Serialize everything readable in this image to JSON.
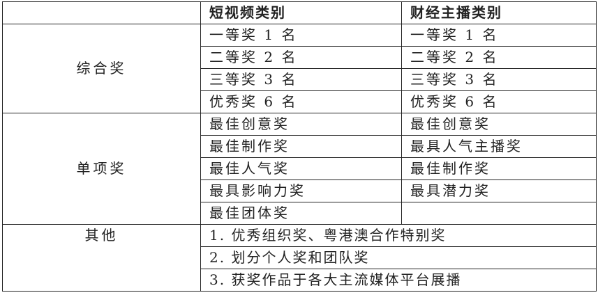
{
  "header": {
    "col1": "",
    "col2": "短视频类别",
    "col3": "财经主播类别"
  },
  "groups": {
    "comprehensive": {
      "label": "综合奖",
      "short_video": [
        "一等奖 1 名",
        "二等奖 2 名",
        "三等奖 3 名",
        "优秀奖 6 名"
      ],
      "finance_anchor": [
        "一等奖 1 名",
        "二等奖 2 名",
        "三等奖 3 名",
        "优秀奖 6 名"
      ]
    },
    "individual": {
      "label": "单项奖",
      "short_video": [
        "最佳创意奖",
        "最佳制作奖",
        "最佳人气奖",
        "最具影响力奖",
        "最佳团体奖"
      ],
      "finance_anchor": [
        "最佳创意奖",
        "最具人气主播奖",
        "最佳制作奖",
        "最具潜力奖",
        ""
      ]
    },
    "other": {
      "label": "其他",
      "items": [
        "1. 优秀组织奖、粤港澳合作特别奖",
        "2. 划分个人奖和团队奖",
        "3. 获奖作品于各大主流媒体平台展播"
      ]
    }
  }
}
